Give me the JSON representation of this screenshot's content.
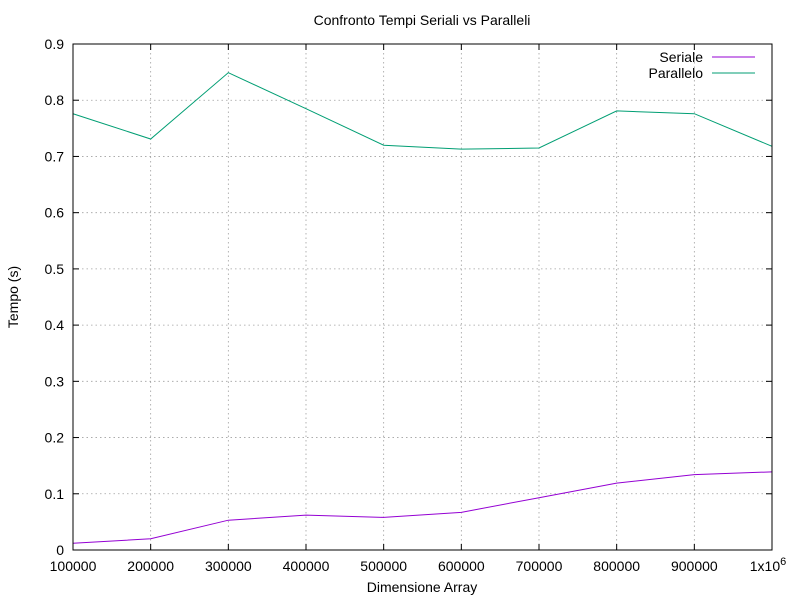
{
  "chart_data": {
    "type": "line",
    "title": "Confronto Tempi Seriali vs Paralleli",
    "xlabel": "Dimensione Array",
    "ylabel": "Tempo (s)",
    "x": [
      100000,
      200000,
      300000,
      400000,
      500000,
      600000,
      700000,
      800000,
      900000,
      1000000
    ],
    "xlim": [
      100000,
      1000000
    ],
    "ylim": [
      0,
      0.9
    ],
    "x_ticks": [
      100000,
      200000,
      300000,
      400000,
      500000,
      600000,
      700000,
      800000,
      900000,
      1000000
    ],
    "x_tick_labels": [
      "100000",
      "200000",
      "300000",
      "400000",
      "500000",
      "600000",
      "700000",
      "800000",
      "900000",
      "1x10"
    ],
    "x_tick_last_superscript": "6",
    "y_ticks": [
      0,
      0.1,
      0.2,
      0.3,
      0.4,
      0.5,
      0.6,
      0.7,
      0.8,
      0.9
    ],
    "y_tick_labels": [
      "0",
      "0.1",
      "0.2",
      "0.3",
      "0.4",
      "0.5",
      "0.6",
      "0.7",
      "0.8",
      "0.9"
    ],
    "grid": true,
    "legend_position": "top-right",
    "series": [
      {
        "name": "Seriale",
        "color": "#9400d3",
        "values": [
          0.012,
          0.02,
          0.053,
          0.062,
          0.058,
          0.067,
          0.093,
          0.119,
          0.134,
          0.139
        ]
      },
      {
        "name": "Parallelo",
        "color": "#009e73",
        "values": [
          0.776,
          0.731,
          0.849,
          0.785,
          0.72,
          0.713,
          0.715,
          0.781,
          0.776,
          0.718
        ]
      }
    ]
  }
}
